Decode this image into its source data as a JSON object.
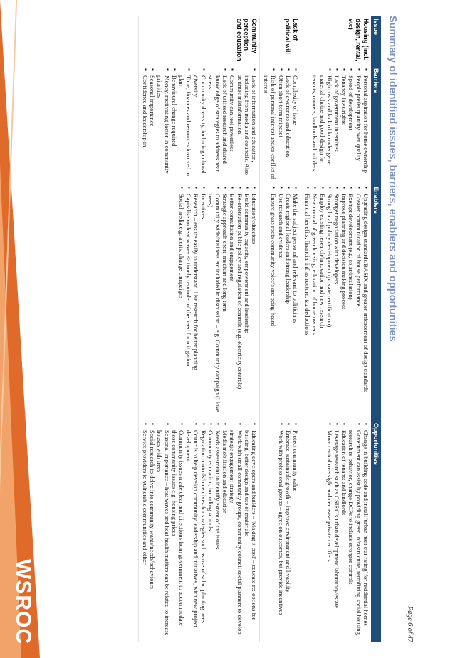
{
  "page_number": "Page 6 of 47",
  "title": "Summary of identified issues, barriers, enablers and opportunities",
  "logo_text": "WSROC",
  "colors": {
    "header_bg": "#1f4d7a",
    "title": "#7d93bd",
    "accent_orange": "#e06a2a"
  },
  "table": {
    "headers": [
      "Issue",
      "Barriers",
      "Enablers",
      "Opportunities"
    ],
    "rows": [
      {
        "issue": "Housing (incl. design, rental, etc)",
        "barriers": [
          "Personal aspiration for home ownership",
          "People prefer quantity over quality",
          "Speed of development",
          "Tenancy laws/rights",
          "Lack of government incentives",
          "High costs and lack of knowledge re: material choice and good design for tenants, owners, landlords and builders"
        ],
        "enablers": [
          "Upgrading design standards/BASIX and greater enforcement of design standards",
          "Greater communication of house performance",
          "Exempt development (e.g. solar/insulation)",
          "Improve planning and decision making process",
          "Stronger negotiation with developers",
          "Strong local policy development (private certification)",
          "Employ existing research/innovation and new research",
          "New normal of green housing, education of home owners",
          "Financial benefits, financial infrastructure, tax deductions"
        ],
        "opportunities": [
          "Change in building code and install 'urban heat star rating' for residential homes",
          "Government can assist by providing green infrastructure, retrofitting social housing, research re behavior, change DCPs to include stronger controls.",
          "Education of tenants and landlords",
          "Leverage research such as CSIRO's urban development laboratory/estate",
          "Move central oversight and decrease private certifiers"
        ]
      },
      {
        "issue": "Lack of political will",
        "barriers": [
          "Complexity of issue",
          "Lack of awareness and education",
          "Often short-term mindset",
          "Risk of personal interest and/or conflict of interest"
        ],
        "enablers": [
          "Make the subject personal and relevant to politicians",
          "Create regional leaders and strong leadership",
          "Use research and evidence",
          "Ensure grass roots community voice/s are being heard"
        ],
        "opportunities": [
          "Protect community value",
          "Embrace sustainable growth – improve environment and livability",
          "Work with professional groups – agree on outcomes, but provide incentives"
        ]
      },
      {
        "issue": "Community perception and education",
        "barriers": [
          "Lack of information and education, including from media and councils. Also at times misinformation.",
          "Community can feel powerless",
          "Lack of utilised research and shared knowledge of strategies to address heat stress",
          "Community diversity, including cultural diversity",
          "Time, finances and resources involved to plan",
          "Behavioural change required",
          "Money, motivating factor in community priorities",
          "Seasonal importance",
          "Confidence and leadership in"
        ],
        "enablers": [
          "Education/educators",
          "Build community capacity, empowerment and leadership",
          "Re-orientation public policy and regulation of controls (e.g. electricity controls)",
          "Better consultation and engagement",
          "Strategic approach short, medium and long term",
          "Community wide/business etc included in discussion – e.g. Community campaign (I love trees)",
          "Incentives",
          "Research – ensure easily to understand. Use research for better planning.",
          "Capitalise on heat waves -> timely reminder of the need for mitigation",
          "Social media e.g. alerts, change campaigns"
        ],
        "opportunities": [
          "Educating developers and builders – 'Making it cool' – educate re: options for building, better design and use of materials",
          "Work with small community groups, community/council social planners to develop strategic engagement strategy",
          "Media mobilisation and education",
          "Needs assessment to identify extent of the issues",
          "Community education, including schools",
          "Regulation controls/incentives for strategies such as use of solar, planting trees",
          "Councils to help develop community leadership and initiatives, with new project development",
          "Community issues made clear and directions from government to accommodate those community issues e.g. housing prices",
          "Seasonal importance – heat waves and heat health matters can be related to increase houses with trees",
          "Social research to delve into community wants/needs/behaviours",
          "Service providers to vulnerable communities and other"
        ]
      }
    ]
  }
}
